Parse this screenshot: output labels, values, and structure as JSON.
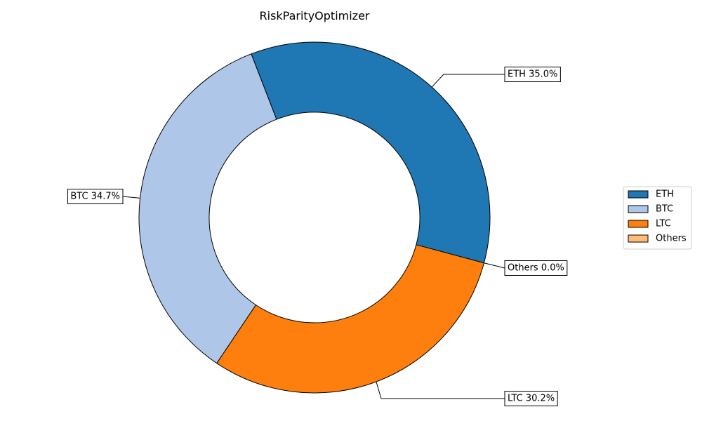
{
  "chart_data": {
    "type": "pie",
    "donut": true,
    "title": "RiskParityOptimizer",
    "slices": [
      {
        "name": "ETH",
        "value": 35.0,
        "label": "ETH 35.0%",
        "color": "#1f77b4"
      },
      {
        "name": "BTC",
        "value": 34.7,
        "label": "BTC 34.7%",
        "color": "#aec7e8"
      },
      {
        "name": "LTC",
        "value": 30.2,
        "label": "LTC 30.2%",
        "color": "#ff7f0e"
      },
      {
        "name": "Others",
        "value": 0.0,
        "label": "Others 0.0%",
        "color": "#ffbb78"
      }
    ],
    "legend": {
      "placement": "right",
      "entries": [
        "ETH",
        "BTC",
        "LTC",
        "Others"
      ]
    },
    "start_angle_deg": -15,
    "direction": "counterclockwise"
  }
}
